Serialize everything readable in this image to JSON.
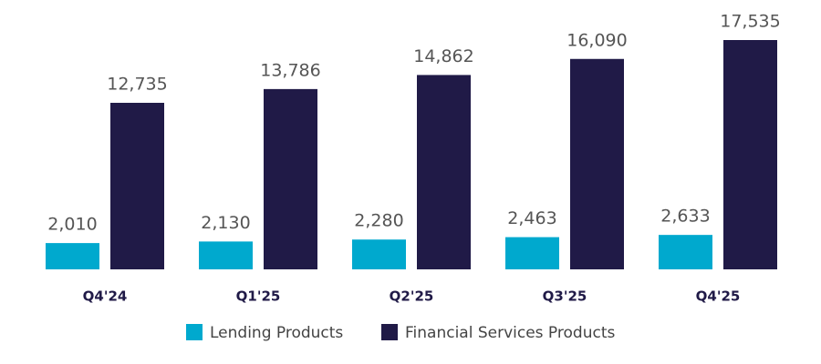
{
  "chart_data": {
    "type": "bar",
    "categories": [
      "Q4'24",
      "Q1'25",
      "Q2'25",
      "Q3'25",
      "Q4'25"
    ],
    "series": [
      {
        "name": "Lending Products",
        "color": "#00a9ce",
        "values": [
          2010,
          2130,
          2280,
          2463,
          2633
        ],
        "value_labels": [
          "2,010",
          "2,130",
          "2,280",
          "2,463",
          "2,633"
        ]
      },
      {
        "name": "Financial Services Products",
        "color": "#201a47",
        "values": [
          12735,
          13786,
          14862,
          16090,
          17535
        ],
        "value_labels": [
          "12,735",
          "13,786",
          "14,862",
          "16,090",
          "17,535"
        ]
      }
    ],
    "legend": "bottom"
  }
}
